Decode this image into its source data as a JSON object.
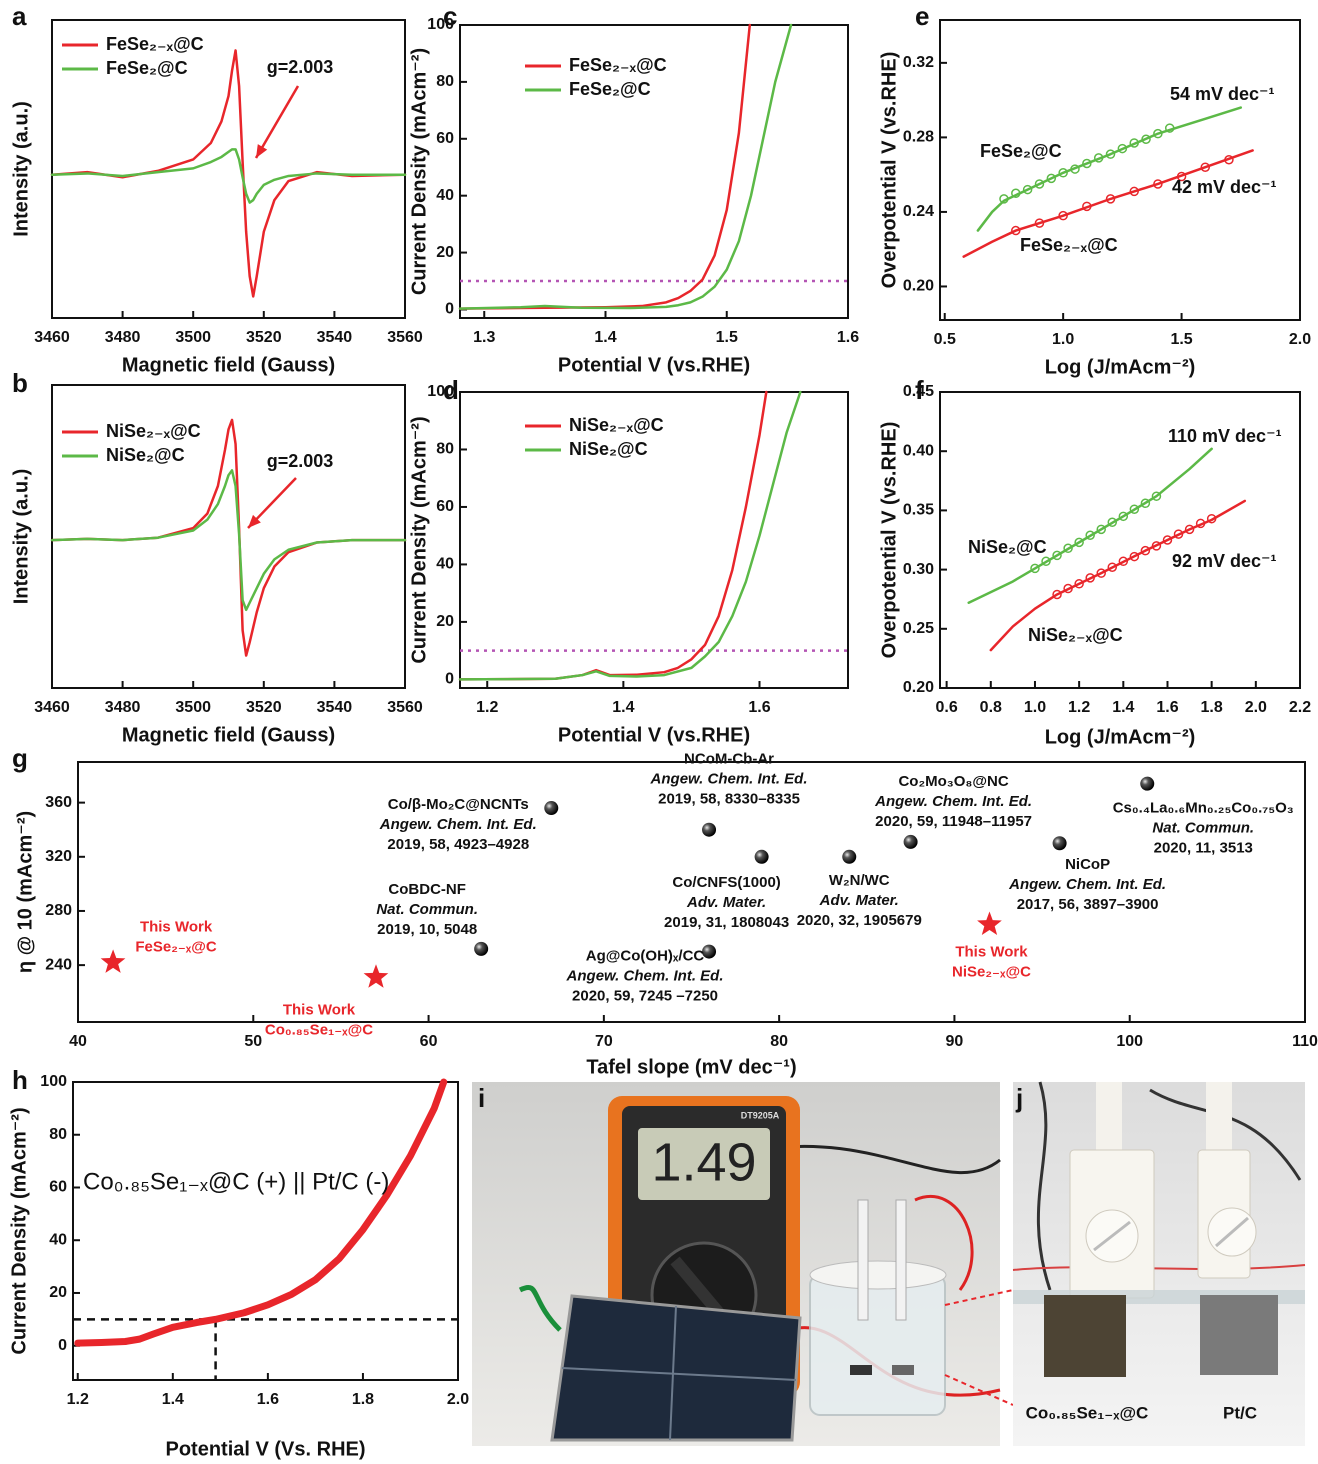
{
  "chart_data": [
    {
      "type": "line",
      "panel": "a",
      "xlabel": "Magnetic field (Gauss)",
      "ylabel": "Intensity (a.u.)",
      "xlim": [
        3460,
        3560
      ],
      "xticks": [
        3460,
        3480,
        3500,
        3520,
        3540,
        3560
      ],
      "ylim": [
        -1.13,
        1.22
      ],
      "legend": "upper left",
      "annotations": [
        "g=2.003"
      ],
      "series": [
        {
          "name": "FeSe₂₋ₓ@C",
          "color": "#e8262b",
          "x": [
            3460,
            3470,
            3480,
            3490,
            3500,
            3505,
            3508,
            3510,
            3511,
            3512,
            3513,
            3514,
            3515,
            3516,
            3517,
            3518,
            3520,
            3523,
            3527,
            3535,
            3545,
            3560
          ],
          "values": [
            0,
            0.02,
            -0.02,
            0.03,
            0.12,
            0.25,
            0.42,
            0.62,
            0.82,
            0.98,
            0.7,
            0.1,
            -0.45,
            -0.8,
            -0.96,
            -0.8,
            -0.45,
            -0.2,
            -0.05,
            0.02,
            -0.01,
            0
          ]
        },
        {
          "name": "FeSe₂@C",
          "color": "#5cb947",
          "x": [
            3460,
            3470,
            3480,
            3490,
            3500,
            3505,
            3508,
            3510,
            3511,
            3512,
            3513,
            3514,
            3515,
            3516,
            3517,
            3518,
            3520,
            3523,
            3527,
            3535,
            3545,
            3560
          ],
          "values": [
            0,
            0.01,
            -0.01,
            0.02,
            0.05,
            0.1,
            0.14,
            0.18,
            0.2,
            0.2,
            0.12,
            -0.02,
            -0.15,
            -0.22,
            -0.2,
            -0.15,
            -0.08,
            -0.04,
            -0.01,
            0.01,
            0,
            0
          ]
        }
      ]
    },
    {
      "type": "line",
      "panel": "b",
      "xlabel": "Magnetic field (Gauss)",
      "ylabel": "Intensity (a.u.)",
      "xlim": [
        3460,
        3560
      ],
      "xticks": [
        3460,
        3480,
        3500,
        3520,
        3540,
        3560
      ],
      "ylim": [
        -1.23,
        1.29
      ],
      "legend": "upper left",
      "annotations": [
        "g=2.003"
      ],
      "series": [
        {
          "name": "NiSe₂₋ₓ@C",
          "color": "#e8262b",
          "x": [
            3460,
            3470,
            3480,
            3490,
            3500,
            3504,
            3507,
            3509,
            3510,
            3511,
            3512,
            3513,
            3514,
            3515,
            3516,
            3518,
            3520,
            3523,
            3527,
            3535,
            3545,
            3560
          ],
          "values": [
            0,
            0.01,
            0,
            0.02,
            0.1,
            0.22,
            0.45,
            0.75,
            0.92,
            1.0,
            0.8,
            0.1,
            -0.75,
            -0.96,
            -0.85,
            -0.6,
            -0.4,
            -0.22,
            -0.1,
            -0.02,
            0,
            0
          ]
        },
        {
          "name": "NiSe₂@C",
          "color": "#5cb947",
          "x": [
            3460,
            3470,
            3480,
            3490,
            3500,
            3504,
            3507,
            3509,
            3510,
            3511,
            3512,
            3513,
            3514,
            3515,
            3516,
            3518,
            3520,
            3523,
            3527,
            3535,
            3545,
            3560
          ],
          "values": [
            0,
            0.01,
            0,
            0.02,
            0.08,
            0.17,
            0.3,
            0.45,
            0.54,
            0.58,
            0.45,
            0.05,
            -0.5,
            -0.58,
            -0.52,
            -0.4,
            -0.28,
            -0.16,
            -0.08,
            -0.02,
            0,
            0
          ]
        }
      ]
    },
    {
      "type": "line",
      "panel": "c",
      "xlabel": "Potential V (vs.RHE)",
      "ylabel": "Current Density (mAcm⁻²)",
      "xlim": [
        1.28,
        1.6
      ],
      "xticks": [
        1.3,
        1.4,
        1.5,
        1.6
      ],
      "ylim": [
        -3,
        100
      ],
      "yticks": [
        0,
        20,
        40,
        60,
        80,
        100
      ],
      "legend": "upper left",
      "hline": 10,
      "ref_color": "#b455b4",
      "series": [
        {
          "name": "FeSe₂₋ₓ@C",
          "color": "#e8262b",
          "x": [
            1.28,
            1.35,
            1.4,
            1.43,
            1.45,
            1.46,
            1.47,
            1.48,
            1.49,
            1.5,
            1.51,
            1.519
          ],
          "values": [
            0.3,
            0.6,
            0.8,
            1.2,
            2.5,
            4,
            6.5,
            10.5,
            19,
            35,
            62,
            100
          ]
        },
        {
          "name": "FeSe₂@C",
          "color": "#5cb947",
          "x": [
            1.28,
            1.33,
            1.35,
            1.38,
            1.42,
            1.45,
            1.46,
            1.47,
            1.48,
            1.49,
            1.5,
            1.51,
            1.52,
            1.53,
            1.54,
            1.553
          ],
          "values": [
            0.3,
            0.8,
            1.2,
            0.6,
            0.5,
            0.9,
            1.5,
            2.5,
            4.5,
            8,
            14,
            24,
            40,
            60,
            80,
            100
          ]
        }
      ]
    },
    {
      "type": "line",
      "panel": "d",
      "xlabel": "Potential V (vs.RHE)",
      "ylabel": "Current Density (mAcm⁻²)",
      "xlim": [
        1.16,
        1.73
      ],
      "xticks": [
        1.2,
        1.4,
        1.6
      ],
      "ylim": [
        -3,
        100
      ],
      "yticks": [
        0,
        20,
        40,
        60,
        80,
        100
      ],
      "legend": "upper left",
      "hline": 10,
      "ref_color": "#b455b4",
      "series": [
        {
          "name": "NiSe₂₋ₓ@C",
          "color": "#e8262b",
          "x": [
            1.16,
            1.3,
            1.34,
            1.36,
            1.38,
            1.42,
            1.46,
            1.48,
            1.5,
            1.52,
            1.54,
            1.56,
            1.58,
            1.6,
            1.61
          ],
          "values": [
            0,
            0.2,
            1.5,
            3.2,
            1.5,
            1.6,
            2.5,
            4,
            7,
            12,
            22,
            38,
            60,
            85,
            100
          ]
        },
        {
          "name": "NiSe₂@C",
          "color": "#5cb947",
          "x": [
            1.16,
            1.3,
            1.34,
            1.36,
            1.38,
            1.42,
            1.46,
            1.5,
            1.52,
            1.54,
            1.56,
            1.58,
            1.6,
            1.62,
            1.64,
            1.66
          ],
          "values": [
            0,
            0.2,
            1.5,
            2.8,
            1.2,
            1,
            1.5,
            4,
            8,
            13,
            22,
            34,
            50,
            68,
            86,
            100
          ]
        }
      ]
    },
    {
      "type": "line",
      "panel": "e",
      "xlabel": "Log (J/mAcm⁻²)",
      "ylabel": "Overpotential V (vs.RHE)",
      "xlim": [
        0.48,
        2.0
      ],
      "xticks": [
        0.5,
        {
          "value": 1.0,
          "label": "1.0"
        },
        1.5,
        {
          "value": 2.0,
          "label": "2.0"
        }
      ],
      "ylim": [
        0.182,
        0.343
      ],
      "yticks": [
        {
          "value": 0.2,
          "label": "0.20"
        },
        0.24,
        0.28,
        0.32
      ],
      "annotations": [
        "54 mV dec⁻¹",
        "42 mV dec⁻¹"
      ],
      "series": [
        {
          "name": "FeSe₂@C",
          "color": "#5cb947",
          "x": [
            0.64,
            0.7,
            0.75,
            0.85,
            1.0,
            1.2,
            1.4,
            1.6,
            1.75
          ],
          "values": [
            0.23,
            0.24,
            0.246,
            0.252,
            0.261,
            0.271,
            0.282,
            0.29,
            0.296
          ],
          "marker_x": [
            0.75,
            0.8,
            0.85,
            0.9,
            0.95,
            1.0,
            1.05,
            1.1,
            1.15,
            1.2,
            1.25,
            1.3,
            1.35,
            1.4,
            1.45
          ],
          "marker_values": [
            0.247,
            0.25,
            0.252,
            0.255,
            0.258,
            0.261,
            0.263,
            0.266,
            0.269,
            0.271,
            0.274,
            0.277,
            0.279,
            0.282,
            0.285
          ]
        },
        {
          "name": "FeSe₂₋ₓ@C",
          "color": "#e8262b",
          "x": [
            0.58,
            0.7,
            0.8,
            1.0,
            1.2,
            1.4,
            1.6,
            1.8
          ],
          "values": [
            0.216,
            0.224,
            0.23,
            0.238,
            0.247,
            0.255,
            0.264,
            0.273
          ],
          "marker_x": [
            0.8,
            0.9,
            1.0,
            1.1,
            1.2,
            1.3,
            1.4,
            1.5,
            1.6,
            1.7
          ],
          "marker_values": [
            0.23,
            0.234,
            0.238,
            0.243,
            0.247,
            0.251,
            0.255,
            0.259,
            0.264,
            0.268
          ]
        }
      ]
    },
    {
      "type": "line",
      "panel": "f",
      "xlabel": "Log (J/mAcm⁻²)",
      "ylabel": "Overpotential V (vs.RHE)",
      "xlim": [
        0.57,
        2.2
      ],
      "xticks": [
        0.6,
        0.8,
        {
          "value": 1.0,
          "label": "1.0"
        },
        1.2,
        1.4,
        1.6,
        1.8,
        {
          "value": 2.0,
          "label": "2.0"
        },
        2.2
      ],
      "ylim": [
        0.2,
        0.45
      ],
      "yticks": [
        {
          "value": 0.2,
          "label": "0.20"
        },
        0.25,
        {
          "value": 0.3,
          "label": "0.30"
        },
        0.35,
        {
          "value": 0.4,
          "label": "0.40"
        },
        0.45
      ],
      "annotations": [
        "110 mV dec⁻¹",
        "92 mV dec⁻¹"
      ],
      "series": [
        {
          "name": "NiSe₂@C",
          "color": "#5cb947",
          "x": [
            0.7,
            0.9,
            1.0,
            1.2,
            1.4,
            1.55,
            1.7,
            1.8
          ],
          "values": [
            0.272,
            0.29,
            0.301,
            0.323,
            0.345,
            0.362,
            0.385,
            0.402
          ],
          "marker_x": [
            1.0,
            1.05,
            1.1,
            1.15,
            1.2,
            1.25,
            1.3,
            1.35,
            1.4,
            1.45,
            1.5,
            1.55
          ],
          "marker_values": [
            0.301,
            0.307,
            0.312,
            0.318,
            0.323,
            0.329,
            0.334,
            0.34,
            0.345,
            0.351,
            0.356,
            0.362
          ]
        },
        {
          "name": "NiSe₂₋ₓ@C",
          "color": "#e8262b",
          "x": [
            0.8,
            0.9,
            1.0,
            1.1,
            1.3,
            1.5,
            1.7,
            1.8,
            1.95
          ],
          "values": [
            0.232,
            0.252,
            0.267,
            0.279,
            0.297,
            0.316,
            0.334,
            0.342,
            0.358
          ],
          "marker_x": [
            1.1,
            1.15,
            1.2,
            1.25,
            1.3,
            1.35,
            1.4,
            1.45,
            1.5,
            1.55,
            1.6,
            1.65,
            1.7,
            1.75,
            1.8
          ],
          "marker_values": [
            0.279,
            0.284,
            0.288,
            0.293,
            0.297,
            0.302,
            0.307,
            0.311,
            0.316,
            0.32,
            0.325,
            0.33,
            0.334,
            0.339,
            0.343
          ]
        }
      ]
    },
    {
      "type": "scatter",
      "panel": "g",
      "xlabel": "Tafel slope (mV dec⁻¹)",
      "ylabel": "η @ 10 (mAcm⁻²)",
      "xlim": [
        40,
        110
      ],
      "xticks": [
        40,
        50,
        60,
        70,
        80,
        90,
        100,
        110
      ],
      "ylim": [
        198,
        390
      ],
      "yticks": [
        240,
        280,
        320,
        360
      ],
      "points": [
        {
          "lines": [
            "This Work",
            "FeSe₂₋ₓ@C"
          ],
          "x": 42,
          "y": 242,
          "marker": "star",
          "color": "#e8262b"
        },
        {
          "lines": [
            "This Work",
            "Co₀.₈₅Se₁₋ₓ@C"
          ],
          "x": 57,
          "y": 231,
          "marker": "star",
          "color": "#e8262b"
        },
        {
          "lines": [
            "This Work",
            "NiSe₂₋ₓ@C"
          ],
          "x": 92,
          "y": 270,
          "marker": "star",
          "color": "#e8262b"
        },
        {
          "lines": [
            "Co/β-Mo₂C@NCNTs",
            "Angew. Chem. Int. Ed.",
            "2019, 58, 4923–4928"
          ],
          "x": 67,
          "y": 356,
          "marker": "sphere",
          "color": "#111111"
        },
        {
          "lines": [
            "CoBDC-NF",
            "Nat. Commun.",
            "2019, 10, 5048"
          ],
          "x": 63,
          "y": 252,
          "marker": "sphere",
          "color": "#111111"
        },
        {
          "lines": [
            "NCoM-Cb-Ar",
            "Angew. Chem. Int. Ed.",
            "2019, 58, 8330–8335"
          ],
          "x": 76,
          "y": 340,
          "marker": "sphere",
          "color": "#111111"
        },
        {
          "lines": [
            "Co/CNFS(1000)",
            "Adv. Mater.",
            "2019, 31, 1808043"
          ],
          "x": 79,
          "y": 320,
          "marker": "sphere",
          "color": "#111111"
        },
        {
          "lines": [
            "Ag@Co(OH)ₓ/CC",
            "Angew. Chem. Int. Ed.",
            "2020, 59, 7245 –7250"
          ],
          "x": 76,
          "y": 250,
          "marker": "sphere",
          "color": "#111111"
        },
        {
          "lines": [
            "W₂N/WC",
            "Adv. Mater.",
            "2020, 32, 1905679"
          ],
          "x": 84,
          "y": 320,
          "marker": "sphere",
          "color": "#111111"
        },
        {
          "lines": [
            "Co₂Mo₃O₈@NC",
            "Angew. Chem. Int. Ed.",
            "2020, 59, 11948–11957"
          ],
          "x": 87.5,
          "y": 331,
          "marker": "sphere",
          "color": "#111111"
        },
        {
          "lines": [
            "NiCoP",
            "Angew. Chem. Int. Ed.",
            "2017, 56, 3897–3900"
          ],
          "x": 96,
          "y": 330,
          "marker": "sphere",
          "color": "#111111"
        },
        {
          "lines": [
            "Cs₀.₄La₀.₆Mn₀.₂₅Co₀.₇₅O₃",
            "Nat. Commun.",
            "2020, 11, 3513"
          ],
          "x": 101,
          "y": 374,
          "marker": "sphere",
          "color": "#111111"
        }
      ]
    },
    {
      "type": "line",
      "panel": "h",
      "xlabel": "Potential V  (Vs. RHE)",
      "ylabel": "Current Density (mAcm⁻²)",
      "xlim": [
        1.19,
        2.0
      ],
      "xticks": [
        1.2,
        1.4,
        1.6,
        1.8,
        {
          "value": 2.0,
          "label": "2.0"
        }
      ],
      "ylim": [
        -13,
        100
      ],
      "yticks": [
        0,
        20,
        40,
        60,
        80,
        100
      ],
      "hline": 10,
      "vline": 1.49,
      "ref_color": "#111111",
      "annotations": [
        "Co₀.₈₅Se₁₋ₓ@C (+) || Pt/C (-)"
      ],
      "series": [
        {
          "color": "#e8262b",
          "x": [
            1.2,
            1.25,
            1.3,
            1.33,
            1.36,
            1.4,
            1.45,
            1.49,
            1.55,
            1.6,
            1.65,
            1.7,
            1.75,
            1.8,
            1.85,
            1.9,
            1.95,
            1.97
          ],
          "values": [
            1,
            1.2,
            1.6,
            2.5,
            4.5,
            7,
            8.8,
            10,
            12.5,
            15.5,
            19.5,
            25,
            33,
            44,
            57,
            72,
            90,
            100
          ]
        }
      ]
    }
  ],
  "photos": {
    "i": {
      "panel": "i",
      "display": "1.49",
      "model": "DT9205A"
    },
    "j": {
      "panel": "j",
      "labels": [
        "Co₀.₈₅Se₁₋ₓ@C",
        "Pt/C"
      ]
    }
  }
}
